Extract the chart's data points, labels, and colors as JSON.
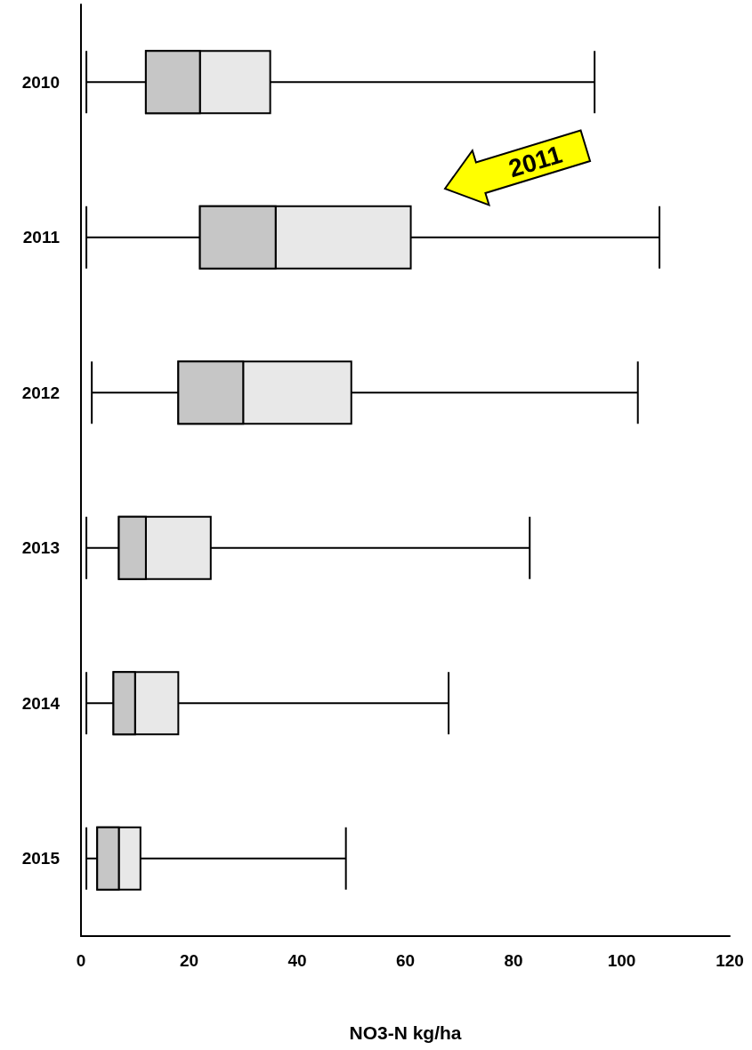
{
  "chart_data": {
    "type": "box",
    "orientation": "horizontal",
    "xlabel": "NO3-N kg/ha",
    "categories": [
      "2010",
      "2011",
      "2012",
      "2013",
      "2014",
      "2015"
    ],
    "series": [
      {
        "color": "#e8e8e8",
        "colors": [
          "#c6c6c6",
          "#c6c6c6",
          "#c6c6c6",
          "#c6c6c6",
          "#c6c6c6",
          "#c6c6c6"
        ],
        "boxes": [
          {
            "low": 1,
            "q1": 12,
            "median": 22,
            "q3": 35,
            "high": 95
          },
          {
            "low": 1,
            "q1": 22,
            "median": 36,
            "q3": 61,
            "high": 107
          },
          {
            "low": 2,
            "q1": 18,
            "median": 30,
            "q3": 50,
            "high": 103
          },
          {
            "low": 1,
            "q1": 7,
            "median": 12,
            "q3": 24,
            "high": 83
          },
          {
            "low": 1,
            "q1": 6,
            "median": 10,
            "q3": 18,
            "high": 68
          },
          {
            "low": 1,
            "q1": 3,
            "median": 7,
            "q3": 11,
            "high": 49
          }
        ]
      }
    ],
    "xlim": [
      0,
      120
    ],
    "xticks": [
      0,
      20,
      40,
      60,
      80,
      100,
      120
    ],
    "grid": false,
    "annotations": [
      "2011"
    ]
  }
}
